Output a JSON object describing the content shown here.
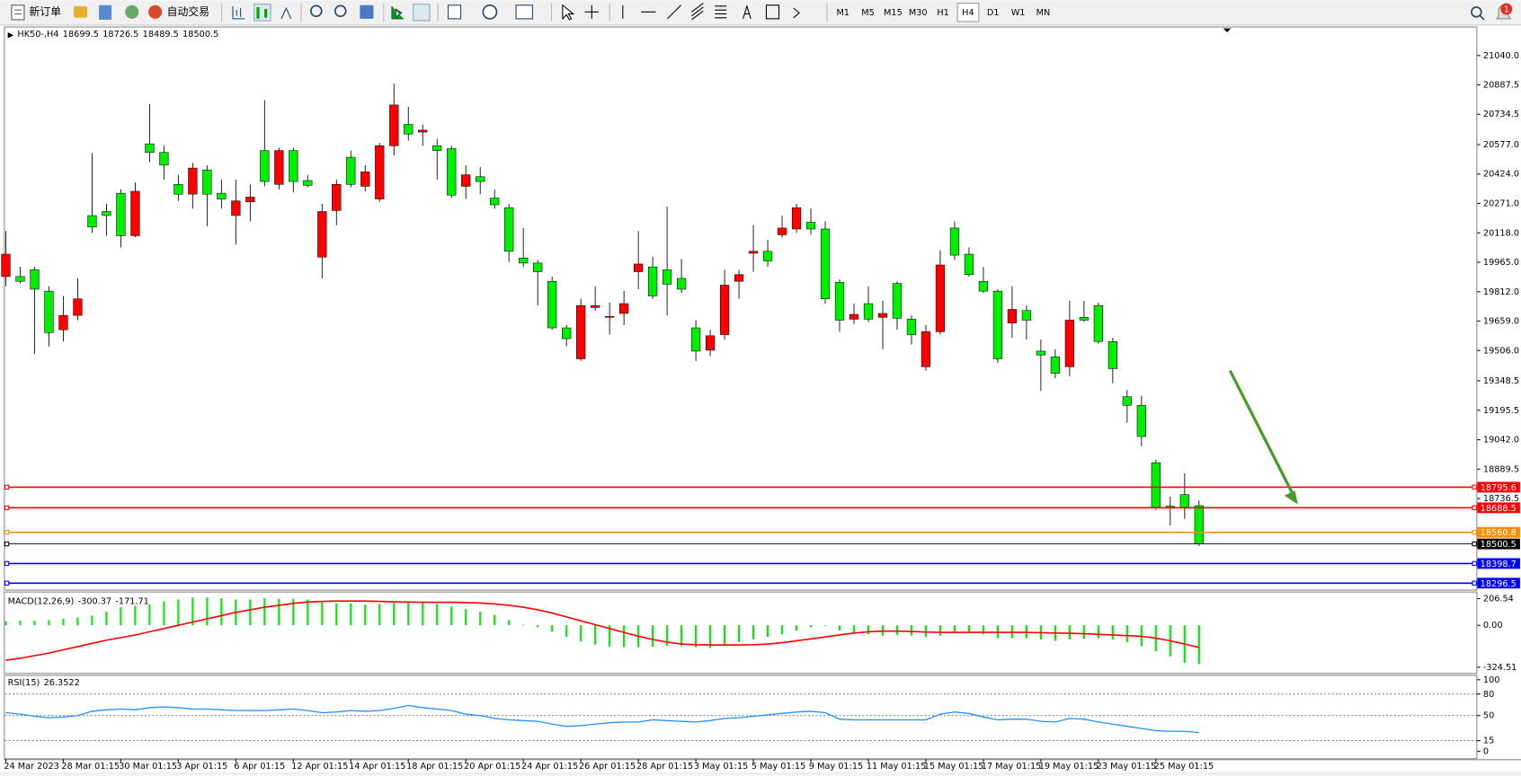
{
  "toolbar": {
    "new_order": "新订单",
    "auto_trading": "自动交易",
    "timeframes": [
      "M1",
      "M5",
      "M15",
      "M30",
      "H1",
      "H4",
      "D1",
      "W1",
      "MN"
    ],
    "active_timeframe": "H4",
    "notifications": 1
  },
  "chart": {
    "symbol": "HK50-,H4",
    "bull_color": "#ff0000",
    "bear_color": "#00ee00",
    "open": [
      19891,
      19891,
      19926,
      19815,
      19614,
      19689,
      20208,
      20229,
      20324,
      20103,
      20581,
      20536,
      20370,
      20319,
      20445,
      20324,
      20208,
      20279,
      20546,
      20370,
      20546,
      20390,
      19992,
      20234,
      20511,
      20360,
      20294,
      20571,
      20682,
      20642,
      20571,
      20556,
      20360,
      20410,
      20299,
      20249,
      19987,
      19961,
      19866,
      19624,
      19463,
      19730,
      19679,
      19699,
      19916,
      19941,
      19926,
      19881,
      19624,
      19508,
      19589,
      19866,
      20012,
      20022,
      20108,
      20138,
      20173,
      20138,
      19861,
      19669,
      19750,
      19679,
      19855,
      19669,
      19422,
      19604,
      20143,
      20007,
      19866,
      19815,
      19649,
      19714,
      19503,
      19473,
      19422,
      19679,
      19740,
      19553,
      19266,
      19221,
      18923,
      18697,
      18757,
      18699.5
    ],
    "high": [
      20128,
      19941,
      19941,
      19840,
      19790,
      19881,
      20531,
      20269,
      20344,
      20380,
      20788,
      20571,
      20420,
      20481,
      20470,
      20395,
      20395,
      20370,
      20808,
      20561,
      20561,
      20420,
      20269,
      20395,
      20546,
      20470,
      20586,
      20894,
      20773,
      20682,
      20607,
      20571,
      20470,
      20460,
      20344,
      20269,
      20143,
      19977,
      19891,
      19639,
      19775,
      19840,
      19755,
      19815,
      20128,
      19992,
      20254,
      19982,
      19664,
      19614,
      19926,
      19926,
      20158,
      20082,
      20208,
      20269,
      20244,
      20178,
      19876,
      19750,
      19840,
      19765,
      19866,
      19689,
      19639,
      20027,
      20178,
      20042,
      19941,
      19825,
      19840,
      19740,
      19563,
      19513,
      19765,
      19765,
      19755,
      19573,
      19301,
      19271,
      18938,
      18747,
      18868,
      18726.5
    ],
    "low": [
      19840,
      19855,
      19488,
      19528,
      19553,
      19664,
      20118,
      20103,
      20042,
      20095,
      20486,
      20395,
      20284,
      20244,
      20153,
      20244,
      20057,
      20178,
      20360,
      20344,
      20329,
      20355,
      19881,
      20158,
      20355,
      20334,
      20279,
      20521,
      20597,
      20571,
      20395,
      20299,
      20294,
      20319,
      20244,
      19967,
      19941,
      19740,
      19614,
      19528,
      19452,
      19714,
      19589,
      19639,
      19825,
      19775,
      19689,
      19805,
      19452,
      19478,
      19563,
      19775,
      19916,
      19941,
      20093,
      20118,
      20108,
      19750,
      19604,
      19644,
      19654,
      19513,
      19614,
      19538,
      19402,
      19589,
      19977,
      19891,
      19805,
      19442,
      19573,
      19563,
      19296,
      19362,
      19372,
      19654,
      19543,
      19336,
      19130,
      19009,
      18676,
      18596,
      18631,
      18489.5
    ],
    "close": [
      20007,
      19866,
      19825,
      19599,
      19689,
      19775,
      20148,
      20208,
      20103,
      20334,
      20536,
      20470,
      20319,
      20455,
      20319,
      20294,
      20284,
      20304,
      20385,
      20546,
      20385,
      20365,
      20229,
      20370,
      20370,
      20435,
      20571,
      20783,
      20632,
      20652,
      20546,
      20314,
      20420,
      20385,
      20264,
      20022,
      19961,
      19916,
      19624,
      19568,
      19740,
      19740,
      19684,
      19750,
      19956,
      19790,
      19851,
      19825,
      19503,
      19583,
      19846,
      19901,
      20022,
      19972,
      20143,
      20249,
      20138,
      19775,
      19664,
      19694,
      19669,
      19699,
      19674,
      19589,
      19604,
      19951,
      20002,
      19901,
      19815,
      19463,
      19720,
      19664,
      19483,
      19387,
      19664,
      19664,
      19553,
      19412,
      19221,
      19059,
      18691,
      18686,
      18686,
      18500.5
    ],
    "ylim": [
      18263,
      21186
    ],
    "yticks": [
      {
        "value": 21040,
        "label": "21040.0"
      },
      {
        "value": 20887.5,
        "label": "20887.5"
      },
      {
        "value": 20734.5,
        "label": "20734.5"
      },
      {
        "value": 20577,
        "label": "20577.0"
      },
      {
        "value": 20424,
        "label": "20424.0"
      },
      {
        "value": 20271,
        "label": "20271.0"
      },
      {
        "value": 20118,
        "label": "20118.0"
      },
      {
        "value": 19965,
        "label": "19965.0"
      },
      {
        "value": 19812,
        "label": "19812.0"
      },
      {
        "value": 19659,
        "label": "19659.0"
      },
      {
        "value": 19506,
        "label": "19506.0"
      },
      {
        "value": 19348.5,
        "label": "19348.5"
      },
      {
        "value": 19195.5,
        "label": "19195.5"
      },
      {
        "value": 19042,
        "label": "19042.0"
      },
      {
        "value": 18889.5,
        "label": "18889.5"
      },
      {
        "value": 18736.5,
        "label": "18736.5"
      }
    ],
    "levels": [
      {
        "value": 18795.6,
        "color": "#ff0000"
      },
      {
        "value": 18688.5,
        "color": "#ff0000"
      },
      {
        "value": 18560.8,
        "color": "#ff8c00"
      },
      {
        "value": 18500.5,
        "color": "#000000"
      },
      {
        "value": 18398.7,
        "color": "#0000ff"
      },
      {
        "value": 18296.5,
        "color": "#0000ff"
      }
    ],
    "x_labels": [
      "24 Mar 2023",
      "28 Mar 01:15",
      "30 Mar 01:15",
      "3 Apr 01:15",
      "6 Apr 01:15",
      "12 Apr 01:15",
      "14 Apr 01:15",
      "18 Apr 01:15",
      "20 Apr 01:15",
      "24 Apr 01:15",
      "26 Apr 01:15",
      "28 Apr 01:15",
      "3 May 01:15",
      "5 May 01:15",
      "9 May 01:15",
      "11 May 01:15",
      "15 May 01:15",
      "17 May 01:15",
      "19 May 01:15",
      "23 May 01:15",
      "25 May 01:15"
    ]
  },
  "macd": {
    "label": "MACD(12,26,9)",
    "histogram_color": "#00ee00",
    "signal_color": "#ff0000",
    "histogram": [
      30,
      35,
      35,
      40,
      50,
      60,
      75,
      105,
      140,
      150,
      160,
      185,
      200,
      215,
      215,
      210,
      200,
      200,
      210,
      205,
      205,
      200,
      180,
      170,
      170,
      160,
      165,
      180,
      180,
      175,
      165,
      145,
      125,
      105,
      80,
      40,
      5,
      -15,
      -50,
      -90,
      -125,
      -150,
      -165,
      -170,
      -170,
      -165,
      -160,
      -160,
      -170,
      -175,
      -160,
      -130,
      -110,
      -90,
      -70,
      -40,
      -15,
      -5,
      -40,
      -60,
      -70,
      -80,
      -75,
      -80,
      -90,
      -80,
      -50,
      -55,
      -70,
      -100,
      -100,
      -100,
      -110,
      -120,
      -110,
      -105,
      -100,
      -110,
      -130,
      -160,
      -200,
      -240,
      -290,
      -300.37
    ],
    "signal": [
      -270,
      -255,
      -235,
      -215,
      -190,
      -165,
      -140,
      -115,
      -95,
      -75,
      -50,
      -25,
      0,
      25,
      50,
      75,
      100,
      120,
      140,
      155,
      170,
      180,
      185,
      188,
      188,
      188,
      185,
      182,
      180,
      178,
      178,
      178,
      176,
      172,
      165,
      155,
      140,
      120,
      95,
      65,
      35,
      5,
      -25,
      -55,
      -85,
      -110,
      -130,
      -145,
      -150,
      -152,
      -153,
      -152,
      -150,
      -145,
      -135,
      -120,
      -105,
      -90,
      -75,
      -60,
      -50,
      -45,
      -45,
      -48,
      -52,
      -55,
      -55,
      -55,
      -55,
      -55,
      -55,
      -55,
      -57,
      -60,
      -62,
      -65,
      -70,
      -75,
      -80,
      -85,
      -100,
      -120,
      -145,
      -171.71
    ],
    "ylim": [
      -369,
      254
    ],
    "yticks": [
      {
        "value": 206.54,
        "label": "206.54"
      },
      {
        "value": 0,
        "label": "0.00"
      },
      {
        "value": -324.51,
        "label": "-324.51"
      }
    ]
  },
  "rsi": {
    "label": "RSI(15)",
    "color": "#1e90ff",
    "values": [
      54,
      52,
      49,
      47,
      48,
      50,
      56,
      58,
      59,
      58,
      61,
      62,
      61,
      59,
      59,
      58,
      57,
      57,
      57,
      58,
      59,
      57,
      54,
      55,
      57,
      56,
      57,
      60,
      64,
      61,
      59,
      57,
      52,
      50,
      46,
      44,
      43,
      42,
      38,
      35,
      36,
      38,
      40,
      41,
      41,
      44,
      43,
      42,
      41,
      43,
      46,
      47,
      49,
      51,
      53,
      55,
      56,
      54,
      45,
      44,
      44,
      44,
      44,
      44,
      44,
      52,
      55,
      53,
      48,
      44,
      45,
      45,
      42,
      41,
      46,
      45,
      41,
      38,
      35,
      32,
      29,
      28,
      28,
      26.3522
    ],
    "ylim": [
      -9.5,
      105.4
    ],
    "yticks": [
      100,
      80,
      50,
      15,
      0
    ]
  }
}
